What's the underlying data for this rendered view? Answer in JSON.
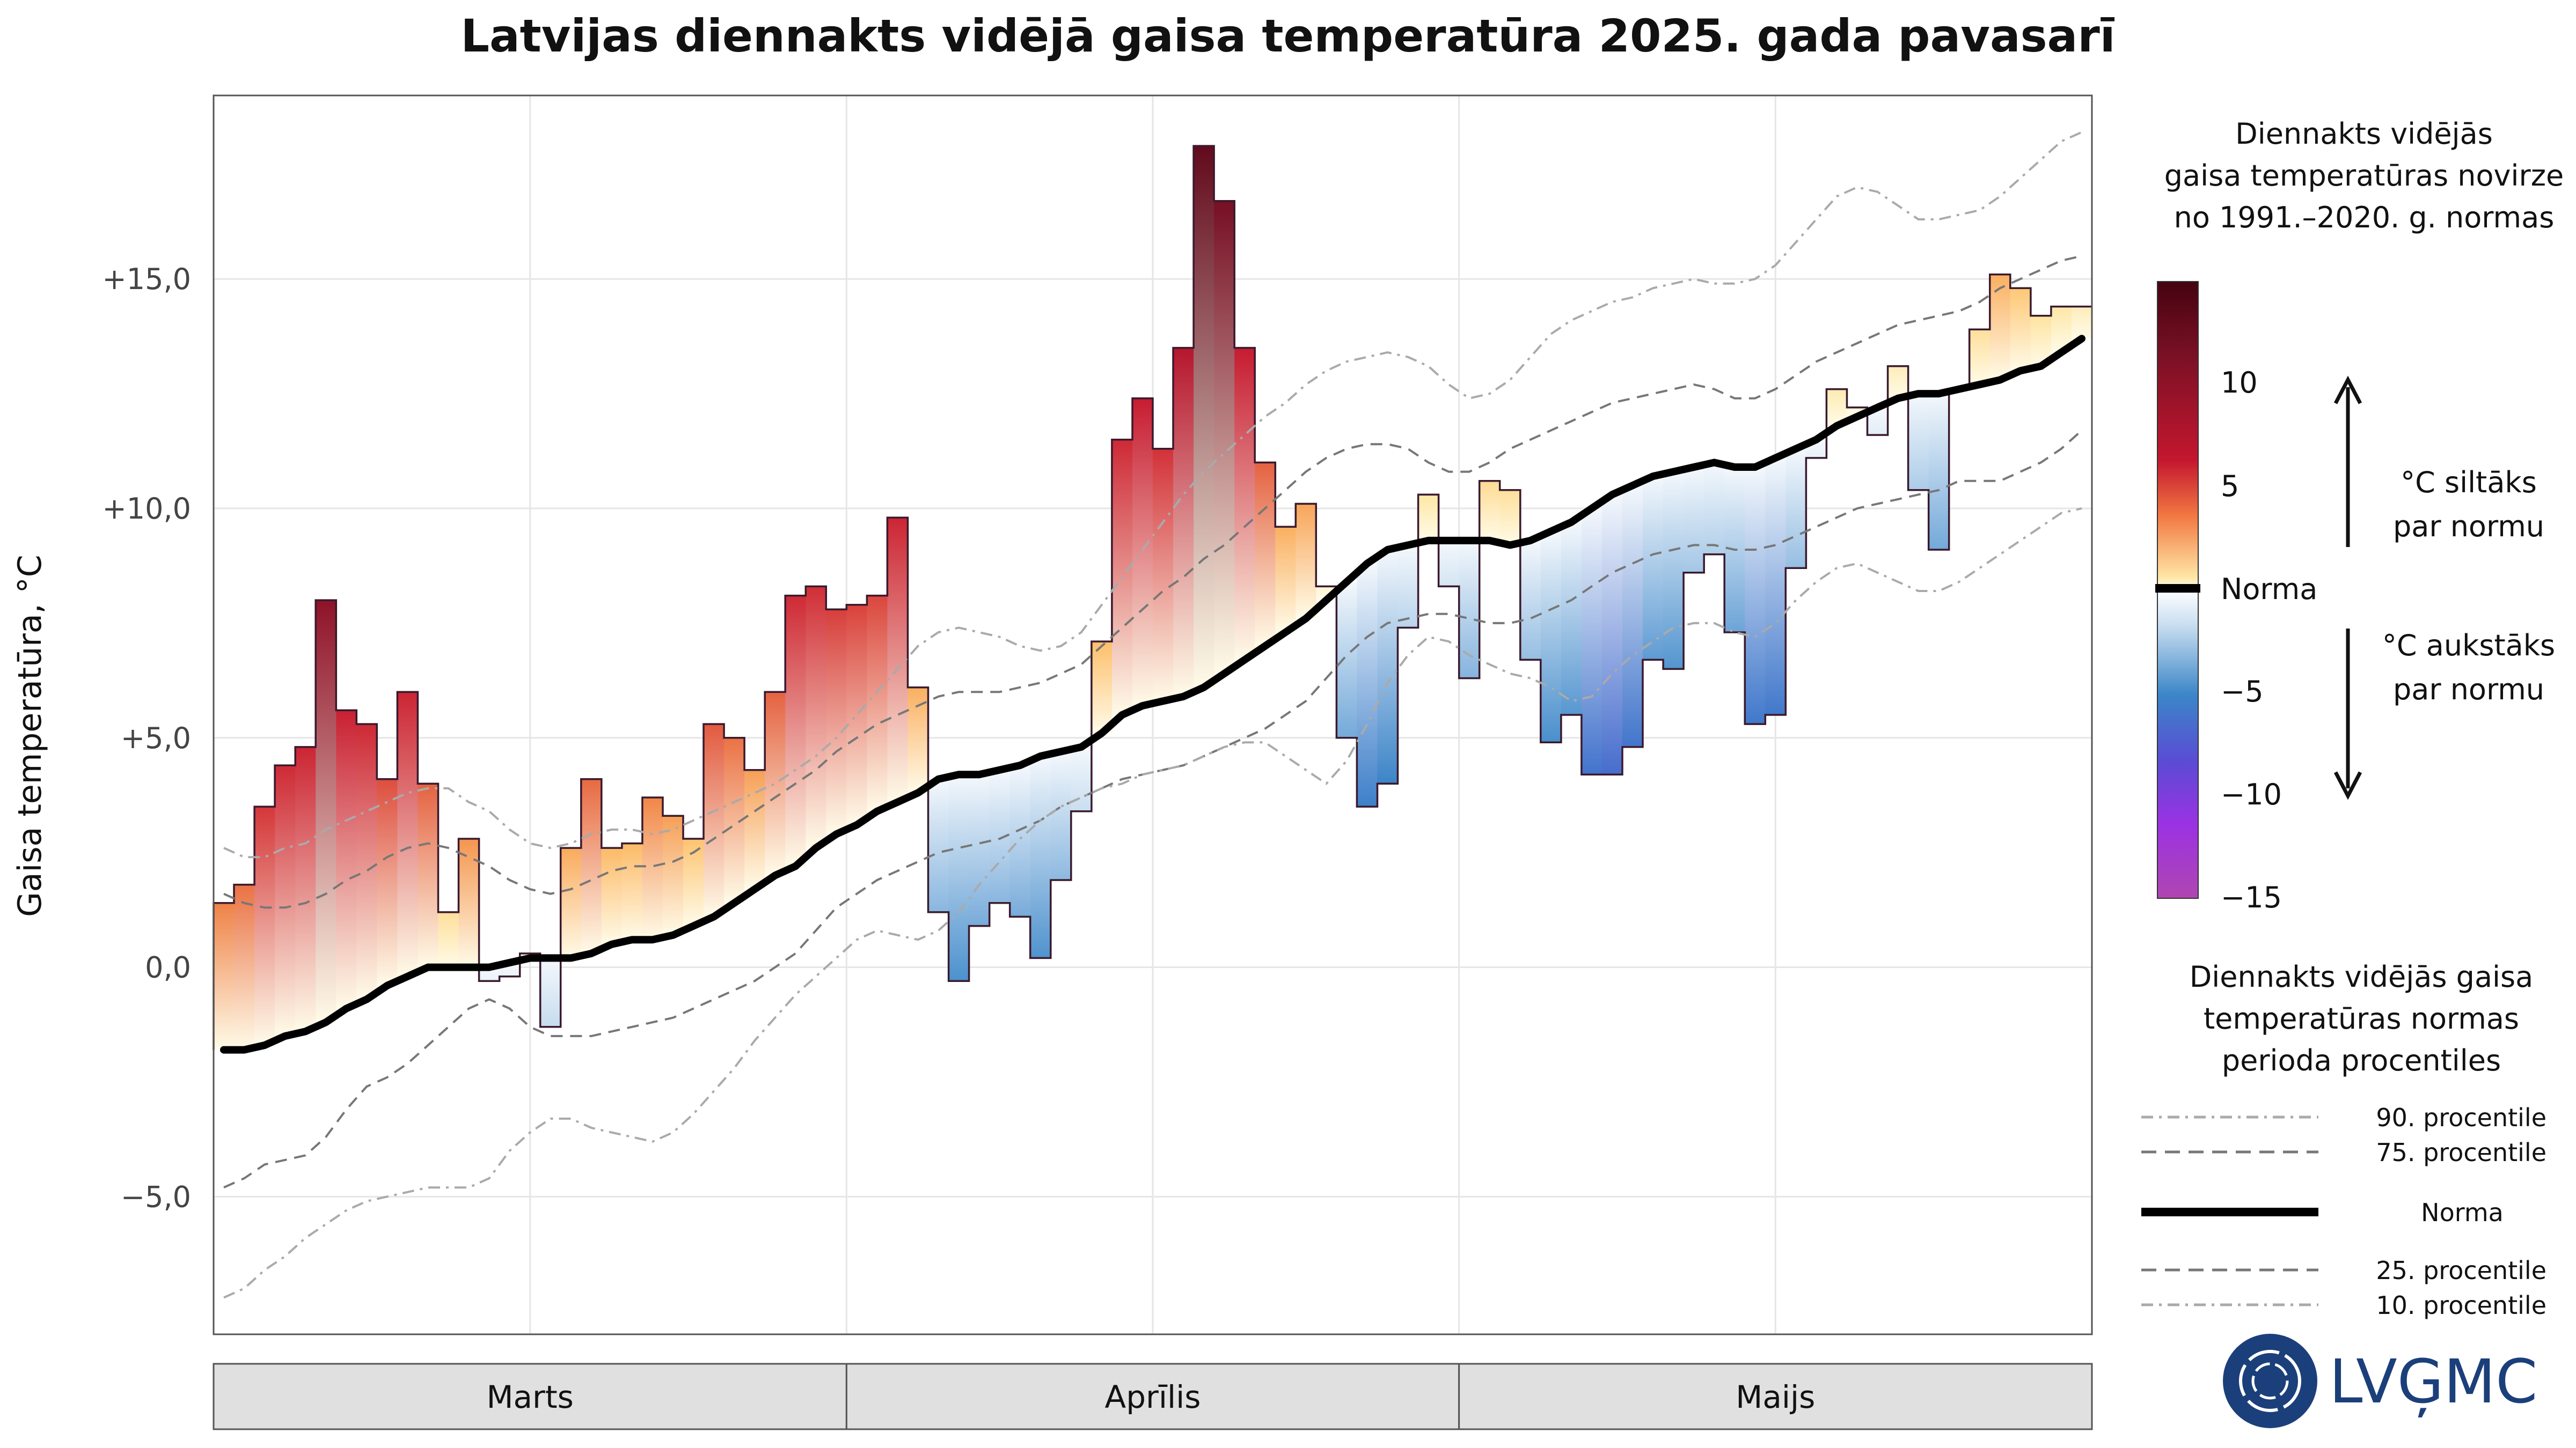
{
  "chart_data": {
    "type": "bar",
    "title": "Latvijas diennakts vidējā gaisa temperatūra 2025. gada pavasarī",
    "ylabel": "Gaisa temperatūra, °C",
    "ylim": [
      -8,
      19
    ],
    "y_ticks": [
      -5,
      0,
      5,
      10,
      15
    ],
    "y_tick_labels": [
      "−5,0",
      "0,0",
      "+5,0",
      "+10,0",
      "+15,0"
    ],
    "months": [
      {
        "name": "Marts",
        "start_day": 1,
        "end_day": 31
      },
      {
        "name": "Aprīlis",
        "start_day": 32,
        "end_day": 61
      },
      {
        "name": "Maijs",
        "start_day": 62,
        "end_day": 92
      }
    ],
    "grid": true,
    "days": 92,
    "observed": [
      1.4,
      1.8,
      3.5,
      4.4,
      4.8,
      8.0,
      5.6,
      5.3,
      4.1,
      6.0,
      4.0,
      1.2,
      2.8,
      -0.3,
      -0.2,
      0.3,
      -1.3,
      2.6,
      4.1,
      2.6,
      2.7,
      3.7,
      3.3,
      2.8,
      5.3,
      5.0,
      4.3,
      6.0,
      8.1,
      8.3,
      7.8,
      7.9,
      8.1,
      9.8,
      6.1,
      1.2,
      -0.3,
      0.9,
      1.4,
      1.1,
      0.2,
      1.9,
      3.4,
      7.1,
      11.5,
      12.4,
      11.3,
      13.5,
      17.9,
      16.7,
      13.5,
      11.0,
      9.6,
      10.1,
      8.3,
      5.0,
      3.5,
      4.0,
      7.4,
      10.3,
      8.3,
      6.3,
      10.6,
      10.4,
      6.7,
      4.9,
      5.5,
      4.2,
      4.2,
      4.8,
      6.7,
      6.5,
      8.6,
      9.0,
      7.3,
      5.3,
      5.5,
      8.7,
      11.1,
      12.6,
      12.2,
      11.6,
      13.1,
      10.4,
      9.1,
      12.6,
      13.9,
      15.1,
      14.8,
      14.2,
      14.4,
      14.4
    ],
    "norm": [
      -1.8,
      -1.8,
      -1.7,
      -1.5,
      -1.4,
      -1.2,
      -0.9,
      -0.7,
      -0.4,
      -0.2,
      0.0,
      0.0,
      0.0,
      0.0,
      0.1,
      0.2,
      0.2,
      0.2,
      0.3,
      0.5,
      0.6,
      0.6,
      0.7,
      0.9,
      1.1,
      1.4,
      1.7,
      2.0,
      2.2,
      2.6,
      2.9,
      3.1,
      3.4,
      3.6,
      3.8,
      4.1,
      4.2,
      4.2,
      4.3,
      4.4,
      4.6,
      4.7,
      4.8,
      5.1,
      5.5,
      5.7,
      5.8,
      5.9,
      6.1,
      6.4,
      6.7,
      7.0,
      7.3,
      7.6,
      8.0,
      8.4,
      8.8,
      9.1,
      9.2,
      9.3,
      9.3,
      9.3,
      9.3,
      9.2,
      9.3,
      9.5,
      9.7,
      10.0,
      10.3,
      10.5,
      10.7,
      10.8,
      10.9,
      11.0,
      10.9,
      10.9,
      11.1,
      11.3,
      11.5,
      11.8,
      12.0,
      12.2,
      12.4,
      12.5,
      12.5,
      12.6,
      12.7,
      12.8,
      13.0,
      13.1,
      13.4,
      13.7
    ],
    "p90": [
      2.6,
      2.4,
      2.4,
      2.6,
      2.7,
      3.0,
      3.2,
      3.4,
      3.6,
      3.8,
      3.9,
      3.9,
      3.6,
      3.4,
      3.0,
      2.7,
      2.6,
      2.7,
      2.9,
      3.0,
      3.0,
      2.9,
      3.0,
      3.2,
      3.4,
      3.6,
      3.8,
      4.0,
      4.3,
      4.6,
      5.0,
      5.5,
      6.0,
      6.5,
      7.0,
      7.3,
      7.4,
      7.3,
      7.2,
      7.0,
      6.9,
      7.0,
      7.3,
      7.9,
      8.5,
      9.1,
      9.7,
      10.3,
      10.8,
      11.2,
      11.6,
      12.0,
      12.3,
      12.7,
      13.0,
      13.2,
      13.3,
      13.4,
      13.3,
      13.1,
      12.7,
      12.4,
      12.5,
      12.8,
      13.3,
      13.8,
      14.1,
      14.3,
      14.5,
      14.6,
      14.8,
      14.9,
      15.0,
      14.9,
      14.9,
      15.0,
      15.3,
      15.8,
      16.3,
      16.8,
      17.0,
      16.9,
      16.6,
      16.3,
      16.3,
      16.4,
      16.5,
      16.8,
      17.2,
      17.6,
      18.0,
      18.2
    ],
    "p75": [
      1.6,
      1.4,
      1.3,
      1.3,
      1.4,
      1.6,
      1.9,
      2.1,
      2.4,
      2.6,
      2.7,
      2.6,
      2.4,
      2.2,
      1.9,
      1.7,
      1.6,
      1.7,
      1.9,
      2.1,
      2.2,
      2.2,
      2.3,
      2.5,
      2.8,
      3.1,
      3.4,
      3.7,
      4.0,
      4.3,
      4.7,
      5.0,
      5.3,
      5.5,
      5.7,
      5.9,
      6.0,
      6.0,
      6.0,
      6.1,
      6.2,
      6.4,
      6.6,
      7.0,
      7.4,
      7.8,
      8.2,
      8.5,
      8.9,
      9.2,
      9.6,
      10.0,
      10.4,
      10.8,
      11.1,
      11.3,
      11.4,
      11.4,
      11.3,
      11.0,
      10.8,
      10.8,
      11.0,
      11.3,
      11.5,
      11.7,
      11.9,
      12.1,
      12.3,
      12.4,
      12.5,
      12.6,
      12.7,
      12.6,
      12.4,
      12.4,
      12.6,
      12.9,
      13.2,
      13.4,
      13.6,
      13.8,
      14.0,
      14.1,
      14.2,
      14.3,
      14.5,
      14.8,
      15.0,
      15.2,
      15.4,
      15.5
    ],
    "p25": [
      -4.8,
      -4.6,
      -4.3,
      -4.2,
      -4.1,
      -3.7,
      -3.1,
      -2.6,
      -2.4,
      -2.1,
      -1.7,
      -1.3,
      -0.9,
      -0.7,
      -0.9,
      -1.3,
      -1.5,
      -1.5,
      -1.5,
      -1.4,
      -1.3,
      -1.2,
      -1.1,
      -0.9,
      -0.7,
      -0.5,
      -0.3,
      0.0,
      0.3,
      0.8,
      1.3,
      1.6,
      1.9,
      2.1,
      2.3,
      2.5,
      2.6,
      2.7,
      2.8,
      3.0,
      3.2,
      3.5,
      3.7,
      3.9,
      4.1,
      4.2,
      4.3,
      4.4,
      4.6,
      4.8,
      5.0,
      5.2,
      5.5,
      5.8,
      6.3,
      6.8,
      7.2,
      7.5,
      7.6,
      7.7,
      7.7,
      7.6,
      7.5,
      7.5,
      7.6,
      7.8,
      8.0,
      8.3,
      8.6,
      8.8,
      9.0,
      9.1,
      9.2,
      9.2,
      9.1,
      9.1,
      9.2,
      9.4,
      9.6,
      9.8,
      10.0,
      10.1,
      10.2,
      10.3,
      10.4,
      10.6,
      10.6,
      10.6,
      10.8,
      11.0,
      11.3,
      11.7
    ],
    "p10": [
      -7.2,
      -7.0,
      -6.6,
      -6.3,
      -5.9,
      -5.6,
      -5.3,
      -5.1,
      -5.0,
      -4.9,
      -4.8,
      -4.8,
      -4.8,
      -4.6,
      -4.0,
      -3.6,
      -3.3,
      -3.3,
      -3.5,
      -3.6,
      -3.7,
      -3.8,
      -3.6,
      -3.2,
      -2.7,
      -2.2,
      -1.6,
      -1.1,
      -0.6,
      -0.2,
      0.2,
      0.6,
      0.8,
      0.7,
      0.6,
      0.8,
      1.2,
      1.8,
      2.3,
      2.8,
      3.2,
      3.5,
      3.7,
      3.9,
      4.0,
      4.2,
      4.3,
      4.4,
      4.6,
      4.8,
      4.9,
      4.9,
      4.6,
      4.3,
      4.0,
      4.5,
      5.3,
      6.2,
      6.8,
      7.2,
      7.1,
      6.8,
      6.6,
      6.4,
      6.3,
      6.1,
      5.8,
      5.9,
      6.4,
      6.8,
      7.1,
      7.4,
      7.5,
      7.5,
      7.3,
      7.2,
      7.5,
      8.0,
      8.4,
      8.7,
      8.8,
      8.6,
      8.4,
      8.2,
      8.2,
      8.4,
      8.7,
      9.0,
      9.3,
      9.6,
      9.9,
      10.0
    ]
  },
  "legend": {
    "colorbar_title": [
      "Diennakts vidējās",
      "gaisa temperatūras novirze",
      "no 1991.–2020. g. normas"
    ],
    "colorbar_ticks": [
      "10",
      "5",
      "Norma",
      "−5",
      "−10",
      "−15"
    ],
    "warmer_label": [
      "°C siltāks",
      "par normu"
    ],
    "colder_label": [
      "°C aukstāks",
      "par normu"
    ],
    "percentile_title": [
      "Diennakts vidējās gaisa",
      "temperatūras normas",
      "perioda procentiles"
    ],
    "percentile_items": [
      "90. procentile",
      "75. procentile",
      "Norma",
      "25. procentile",
      "10. procentile"
    ]
  },
  "logo": {
    "text": "LVĢMC"
  },
  "colors": {
    "norm_line": "#000000",
    "warm_outline": "#4a0f18",
    "cold_outline": "#1f2a7a",
    "percentile": "#777777",
    "strip_fill": "#e0e0e0"
  }
}
